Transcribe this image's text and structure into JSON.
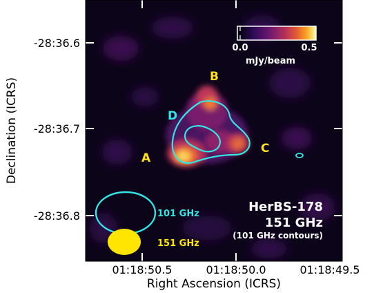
{
  "figure": {
    "xlabel": "Right Ascension (ICRS)",
    "ylabel": "Declination (ICRS)",
    "x_ticks": [
      "01:18:50.5",
      "01:18:50.0",
      "01:18:49.5"
    ],
    "y_ticks": [
      "-28:36.6",
      "-28:36.7",
      "-28:36.8"
    ]
  },
  "sources": {
    "a": "A",
    "b": "B",
    "c": "C",
    "d": "D"
  },
  "beams": {
    "cyan_label": "101 GHz",
    "yellow_label": "151 GHz",
    "cyan_color": "#33e6e6",
    "yellow_color": "#ffe600"
  },
  "info": {
    "name": "HerBS-178",
    "freq": "151 GHz",
    "note": "(101 GHz contours)"
  },
  "colorbar": {
    "min_label": "0.0",
    "max_label": "0.5",
    "unit": "mJy/beam",
    "colormap": "inferno"
  }
}
